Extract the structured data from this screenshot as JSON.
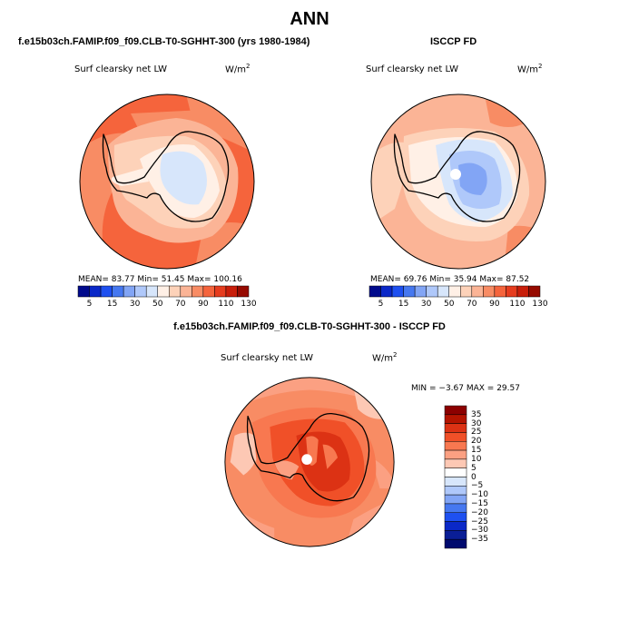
{
  "title": "ANN",
  "panels": [
    {
      "subtitle": "f.e15b03ch.FAMIP.f09_f09.CLB-T0-SGHHT-300 (yrs 1980-1984)",
      "variable": "Surf clearsky net LW",
      "units_base": "W/m",
      "units_exp": "2",
      "stats": "MEAN=  83.77   Min=  51.45   Max= 100.16"
    },
    {
      "subtitle": "ISCCP FD",
      "variable": "Surf clearsky net LW",
      "units_base": "W/m",
      "units_exp": "2",
      "stats": "MEAN=  69.76   Min=  35.94   Max=  87.52"
    }
  ],
  "colorbar": {
    "tick_labels": [
      "5",
      "15",
      "30",
      "50",
      "70",
      "90",
      "110",
      "130"
    ],
    "colors": [
      "#000a8c",
      "#0a28c8",
      "#1e50f0",
      "#4678f0",
      "#82a5f5",
      "#afc8fa",
      "#d7e6fb",
      "#fff0e6",
      "#fdd2b9",
      "#fbb496",
      "#f88c64",
      "#f5643c",
      "#e63c1e",
      "#c81e0a",
      "#960a00"
    ]
  },
  "difference": {
    "subtitle": "f.e15b03ch.FAMIP.f09_f09.CLB-T0-SGHHT-300 - ISCCP FD",
    "variable": "Surf clearsky net LW",
    "units_base": "W/m",
    "units_exp": "2",
    "stats": "MIN =  −3.67  MAX =  29.57",
    "colorbar_labels": [
      "35",
      "30",
      "25",
      "20",
      "15",
      "10",
      "5",
      "0",
      "−5",
      "−10",
      "−15",
      "−20",
      "−25",
      "−30",
      "−35"
    ],
    "colorbar_colors": [
      "#8c0000",
      "#b41400",
      "#dc3214",
      "#f05028",
      "#f87850",
      "#fba082",
      "#fdc8b4",
      "#ffffff",
      "#d7e6fb",
      "#afc8fa",
      "#82a5f5",
      "#4678f0",
      "#1e50f0",
      "#0a28c8",
      "#0a1e96",
      "#000a6e"
    ]
  }
}
